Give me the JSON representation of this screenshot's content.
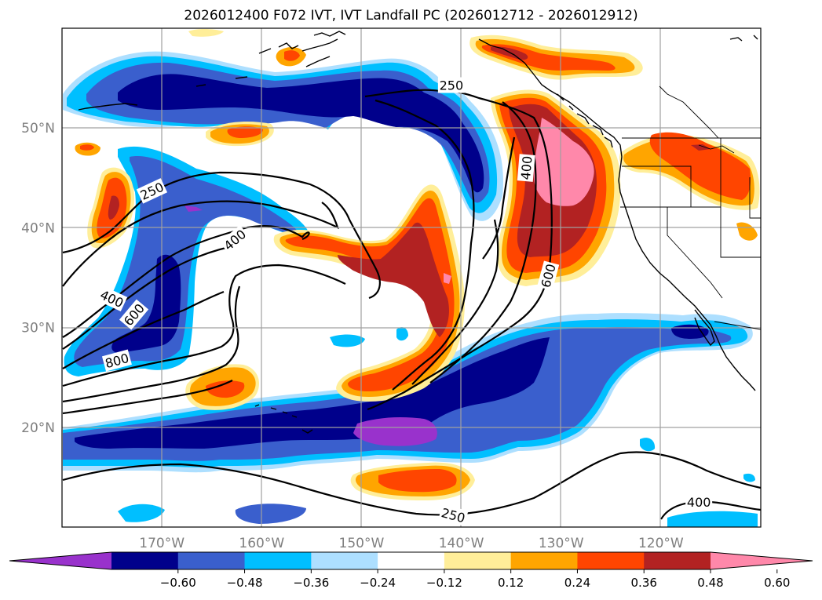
{
  "title": "2026012400 F072 IVT, IVT Landfall PC (2026012712 - 2026012912)",
  "map": {
    "lon_range": [
      -180,
      -110
    ],
    "lat_range": [
      10,
      60
    ],
    "lon_ticks": [
      {
        "value": -170,
        "label": "170°W"
      },
      {
        "value": -160,
        "label": "160°W"
      },
      {
        "value": -150,
        "label": "150°W"
      },
      {
        "value": -140,
        "label": "140°W"
      },
      {
        "value": -130,
        "label": "130°W"
      },
      {
        "value": -120,
        "label": "120°W"
      }
    ],
    "lat_ticks": [
      {
        "value": 20,
        "label": "20°N"
      },
      {
        "value": 30,
        "label": "30°N"
      },
      {
        "value": 40,
        "label": "40°N"
      },
      {
        "value": 50,
        "label": "50°N"
      }
    ],
    "contour_labels": [
      {
        "text": "250",
        "lon": -141,
        "lat": 54.3,
        "rot": 0
      },
      {
        "text": "250",
        "lon": -171,
        "lat": 43.7,
        "rot": -25
      },
      {
        "text": "400",
        "lon": -133.5,
        "lat": 46,
        "rot": -85
      },
      {
        "text": "400",
        "lon": -162.7,
        "lat": 38.8,
        "rot": -40
      },
      {
        "text": "400",
        "lon": -175,
        "lat": 32.9,
        "rot": 25
      },
      {
        "text": "400",
        "lon": -116.2,
        "lat": 12.5,
        "rot": 0
      },
      {
        "text": "600",
        "lon": -172.8,
        "lat": 31.3,
        "rot": -50
      },
      {
        "text": "600",
        "lon": -131.3,
        "lat": 35.2,
        "rot": -75
      },
      {
        "text": "800",
        "lon": -174.5,
        "lat": 26.7,
        "rot": -15
      },
      {
        "text": "250",
        "lon": -140.8,
        "lat": 11.2,
        "rot": 15
      }
    ]
  },
  "colorbar": {
    "colors": [
      "#9932cc",
      "#00008b",
      "#3a5fcd",
      "#00bfff",
      "#addfff",
      "#ffffff",
      "#ffee99",
      "#ffa500",
      "#ff4500",
      "#b22222",
      "#ff88aa"
    ],
    "ticks": [
      "−0.60",
      "−0.48",
      "−0.36",
      "−0.24",
      "−0.12",
      "0.12",
      "0.24",
      "0.36",
      "0.48",
      "0.60"
    ]
  }
}
